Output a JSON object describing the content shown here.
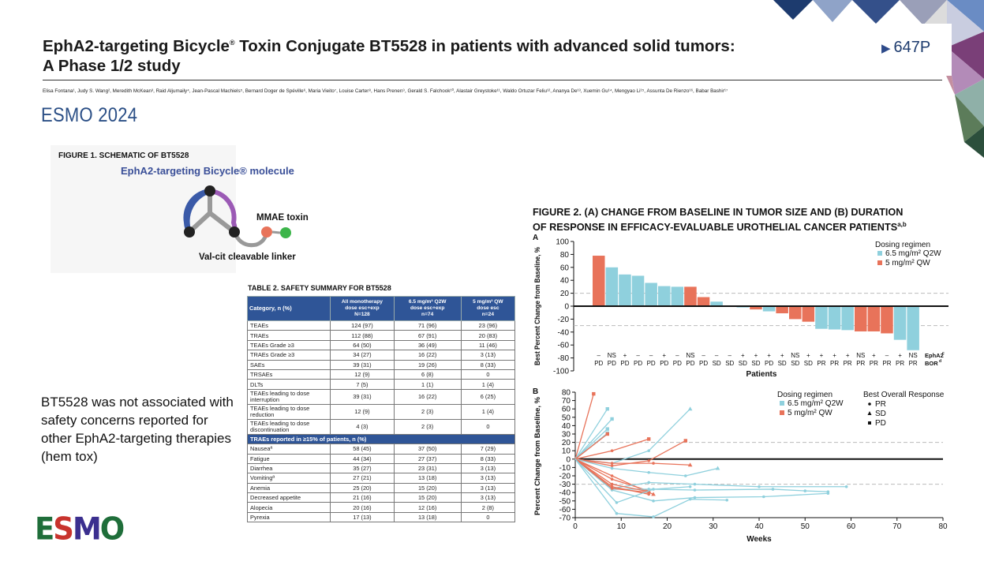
{
  "header": {
    "title_line1": "EphA2-targeting Bicycle",
    "title_reg": "®",
    "title_line1_rest": " Toxin Conjugate BT5528 in patients with advanced solid tumors:",
    "title_line2": "A Phase 1/2 study",
    "poster_number": "647P",
    "authors": "Elisa Fontana¹, Judy S. Wang², Meredith McKean³, Raid Aljumaily⁴, Jean-Pascal Machiels⁵, Bernard Doger de Spéville⁶, Maria Vieito⁷, Louise Carter⁸, Hans Prenen⁹, Gerald S. Falchook¹⁰, Alastair Greystoke¹¹, Waldo Ortuzar Feliu¹², Ananya De¹³, Xuemin Gu¹⁴, Mengyao Li¹⁵, Assunta De Rienzo¹⁶, Babar Bashir¹⁷",
    "conference": "ESMO 2024"
  },
  "figure1": {
    "title": "FIGURE 1. SCHEMATIC OF BT5528",
    "molecule_label": "EphA2-targeting Bicycle® molecule",
    "toxin_label": "MMAE toxin",
    "linker_label": "Val-cit cleavable linker",
    "colors": {
      "loop_blue": "#3a5aa8",
      "loop_purple": "#9b5ab5",
      "linker": "#999999",
      "toxin_red": "#e8735a",
      "toxin_green": "#3cb54a"
    }
  },
  "summary_text": "BT5528 was not associated with safety concerns reported for other EphA2-targeting therapies (hem tox)",
  "logo": {
    "letters": [
      "E",
      "S",
      "M",
      "O"
    ],
    "colors": [
      "#1f6e3a",
      "#c8332d",
      "#3b2f8f",
      "#1f6e3a"
    ]
  },
  "table2": {
    "title": "TABLE 2. SAFETY SUMMARY FOR BT5528",
    "headers": [
      {
        "l1": "Category, n (%)",
        "l2": "",
        "l3": ""
      },
      {
        "l1": "All monotherapy",
        "l2": "dose esc+exp",
        "l3": "N=128"
      },
      {
        "l1": "6.5 mg/m² Q2W",
        "l2": "dose esc+exp",
        "l3": "n=74"
      },
      {
        "l1": "5 mg/m² QW",
        "l2": "dose esc",
        "l3": "n=24"
      }
    ],
    "rows": [
      [
        "TEAEs",
        "124 (97)",
        "71 (96)",
        "23 (96)"
      ],
      [
        "TRAEs",
        "112 (88)",
        "67 (91)",
        "20 (83)"
      ],
      [
        "TEAEs Grade ≥3",
        "64 (50)",
        "36 (49)",
        "11 (46)"
      ],
      [
        "TRAEs Grade ≥3",
        "34 (27)",
        "16 (22)",
        "3 (13)"
      ],
      [
        "SAEs",
        "39 (31)",
        "19 (26)",
        "8 (33)"
      ],
      [
        "TRSAEs",
        "12 (9)",
        "6 (8)",
        "0"
      ],
      [
        "DLTs",
        "7 (5)",
        "1 (1)",
        "1 (4)"
      ]
    ],
    "tall_rows": [
      [
        "TEAEs leading to dose interruption",
        "39 (31)",
        "16 (22)",
        "6 (25)"
      ],
      [
        "TEAEs leading to dose reduction",
        "12 (9)",
        "2 (3)",
        "1 (4)"
      ],
      [
        "TEAEs leading to dose discontinuation",
        "4 (3)",
        "2 (3)",
        "0"
      ]
    ],
    "section": "TRAEs reported in ≥15% of patients, n (%)",
    "trae_rows": [
      [
        "Nauseaª",
        "58 (45)",
        "37 (50)",
        "7 (29)"
      ],
      [
        "Fatigue",
        "44 (34)",
        "27 (37)",
        "8 (33)"
      ],
      [
        "Diarrhea",
        "35 (27)",
        "23 (31)",
        "3 (13)"
      ],
      [
        "Vomitingª",
        "27 (21)",
        "13 (18)",
        "3 (13)"
      ],
      [
        "Anemia",
        "25 (20)",
        "15 (20)",
        "3 (13)"
      ],
      [
        "Decreased appetite",
        "21 (16)",
        "15 (20)",
        "3 (13)"
      ],
      [
        "Alopecia",
        "20 (16)",
        "12 (16)",
        "2 (8)"
      ],
      [
        "Pyrexia",
        "17 (13)",
        "13 (18)",
        "0"
      ]
    ]
  },
  "figure2": {
    "title_line1": "FIGURE 2. (A) CHANGE FROM BASELINE IN TUMOR SIZE AND (B) DURATION",
    "title_line2": "OF RESPONSE IN EFFICACY-EVALUABLE UROTHELIAL CANCER PATIENTS",
    "title_sup": "a,b"
  },
  "chart_data": [
    {
      "type": "bar",
      "panel": "A",
      "ylabel": "Best Percent Change from Baseline, %",
      "xlabel": "Patients",
      "ylim": [
        -100,
        100
      ],
      "yticks": [
        100,
        80,
        60,
        40,
        20,
        0,
        -20,
        -40,
        -60,
        -80,
        -100
      ],
      "reference_lines": [
        20,
        -30
      ],
      "legend_title": "Dosing regimen",
      "series_names": [
        "6.5 mg/m² Q2W",
        "5 mg/m² QW"
      ],
      "colors": {
        "6.5 mg/m² Q2W": "#8fd0dd",
        "5 mg/m² QW": "#e8735a"
      },
      "bars": [
        {
          "value": 78,
          "regimen": "5 mg/m² QW",
          "epha2": "–",
          "bor": "PD"
        },
        {
          "value": 60,
          "regimen": "6.5 mg/m² Q2W",
          "epha2": "NS",
          "bor": "PD"
        },
        {
          "value": 49,
          "regimen": "6.5 mg/m² Q2W",
          "epha2": "+",
          "bor": "PD"
        },
        {
          "value": 47,
          "regimen": "6.5 mg/m² Q2W",
          "epha2": "–",
          "bor": "PD"
        },
        {
          "value": 36,
          "regimen": "6.5 mg/m² Q2W",
          "epha2": "–",
          "bor": "PD"
        },
        {
          "value": 31,
          "regimen": "6.5 mg/m² Q2W",
          "epha2": "+",
          "bor": "PD"
        },
        {
          "value": 30,
          "regimen": "6.5 mg/m² Q2W",
          "epha2": "–",
          "bor": "PD"
        },
        {
          "value": 30,
          "regimen": "5 mg/m² QW",
          "epha2": "NS",
          "bor": "PD"
        },
        {
          "value": 14,
          "regimen": "5 mg/m² QW",
          "epha2": "–",
          "bor": "PD"
        },
        {
          "value": 7,
          "regimen": "6.5 mg/m² Q2W",
          "epha2": "–",
          "bor": "SD"
        },
        {
          "value": -1,
          "regimen": "6.5 mg/m² Q2W",
          "epha2": "–",
          "bor": "SD"
        },
        {
          "value": -2,
          "regimen": "6.5 mg/m² Q2W",
          "epha2": "+",
          "bor": "SD"
        },
        {
          "value": -5,
          "regimen": "5 mg/m² QW",
          "epha2": "+",
          "bor": "SD"
        },
        {
          "value": -8,
          "regimen": "6.5 mg/m² Q2W",
          "epha2": "+",
          "bor": "PD"
        },
        {
          "value": -11,
          "regimen": "5 mg/m² QW",
          "epha2": "+",
          "bor": "SD"
        },
        {
          "value": -20,
          "regimen": "5 mg/m² QW",
          "epha2": "NS",
          "bor": "SD"
        },
        {
          "value": -24,
          "regimen": "5 mg/m² QW",
          "epha2": "+",
          "bor": "SD"
        },
        {
          "value": -35,
          "regimen": "6.5 mg/m² Q2W",
          "epha2": "+",
          "bor": "PR"
        },
        {
          "value": -36,
          "regimen": "6.5 mg/m² Q2W",
          "epha2": "+",
          "bor": "PR"
        },
        {
          "value": -37,
          "regimen": "6.5 mg/m² Q2W",
          "epha2": "+",
          "bor": "PR"
        },
        {
          "value": -39,
          "regimen": "5 mg/m² QW",
          "epha2": "NS",
          "bor": "PR"
        },
        {
          "value": -39,
          "regimen": "5 mg/m² QW",
          "epha2": "+",
          "bor": "PR"
        },
        {
          "value": -42,
          "regimen": "5 mg/m² QW",
          "epha2": "–",
          "bor": "PR"
        },
        {
          "value": -52,
          "regimen": "6.5 mg/m² Q2W",
          "epha2": "+",
          "bor": "PR"
        },
        {
          "value": -68,
          "regimen": "6.5 mg/m² Q2W",
          "epha2": "NS",
          "bor": "PR"
        }
      ],
      "row_label_epha2": "EphA2",
      "row_label_epha2_sup": "c",
      "row_label_bor": "BOR",
      "row_label_bor_sup": "d"
    },
    {
      "type": "line",
      "panel": "B",
      "ylabel": "Percent Change from Baseline, %",
      "xlabel": "Weeks",
      "xlim": [
        0,
        80
      ],
      "ylim": [
        -70,
        80
      ],
      "xticks": [
        0,
        10,
        20,
        30,
        40,
        50,
        60,
        70,
        80
      ],
      "yticks": [
        80,
        70,
        60,
        50,
        40,
        30,
        20,
        10,
        0,
        -10,
        -20,
        -30,
        -40,
        -50,
        -60,
        -70
      ],
      "reference_lines": [
        20,
        -30
      ],
      "legend_title": "Dosing regimen",
      "legend2_title": "Best Overall Response",
      "response_labels": [
        "PR",
        "SD",
        "PD"
      ],
      "series_names": [
        "6.5 mg/m² Q2W",
        "5 mg/m² QW"
      ],
      "colors": {
        "6.5 mg/m² Q2W": "#8fd0dd",
        "5 mg/m² QW": "#e8735a"
      },
      "lines": [
        {
          "regimen": "5 mg/m² QW",
          "bor": "PD",
          "points": [
            [
              0,
              0
            ],
            [
              4,
              78
            ]
          ]
        },
        {
          "regimen": "6.5 mg/m² Q2W",
          "bor": "PD",
          "points": [
            [
              0,
              0
            ],
            [
              7,
              60
            ]
          ]
        },
        {
          "regimen": "6.5 mg/m² Q2W",
          "bor": "PD",
          "points": [
            [
              0,
              0
            ],
            [
              8,
              48
            ]
          ]
        },
        {
          "regimen": "6.5 mg/m² Q2W",
          "bor": "PD",
          "points": [
            [
              0,
              0
            ],
            [
              7,
              36
            ]
          ]
        },
        {
          "regimen": "6.5 mg/m² Q2W",
          "bor": "PD",
          "points": [
            [
              0,
              0
            ],
            [
              7,
              31
            ]
          ]
        },
        {
          "regimen": "5 mg/m² QW",
          "bor": "PD",
          "points": [
            [
              0,
              0
            ],
            [
              7,
              30
            ]
          ]
        },
        {
          "regimen": "6.5 mg/m² Q2W",
          "bor": "SD",
          "points": [
            [
              0,
              0
            ],
            [
              8,
              -5
            ],
            [
              16,
              10
            ],
            [
              25,
              60
            ]
          ]
        },
        {
          "regimen": "5 mg/m² QW",
          "bor": "PD",
          "points": [
            [
              0,
              0
            ],
            [
              8,
              10
            ],
            [
              16,
              24
            ]
          ]
        },
        {
          "regimen": "5 mg/m² QW",
          "bor": "PD",
          "points": [
            [
              0,
              0
            ],
            [
              8,
              -8
            ],
            [
              16,
              -2
            ],
            [
              24,
              22
            ]
          ]
        },
        {
          "regimen": "5 mg/m² QW",
          "bor": "SD",
          "points": [
            [
              0,
              0
            ],
            [
              8,
              -5
            ],
            [
              17,
              -5
            ],
            [
              25,
              -7
            ]
          ]
        },
        {
          "regimen": "6.5 mg/m² Q2W",
          "bor": "SD",
          "points": [
            [
              0,
              0
            ],
            [
              8,
              -11
            ],
            [
              16,
              -16
            ],
            [
              24,
              -20
            ],
            [
              31,
              -11
            ]
          ]
        },
        {
          "regimen": "5 mg/m² QW",
          "bor": "SD",
          "points": [
            [
              0,
              0
            ],
            [
              8,
              -20
            ],
            [
              16,
              -40
            ],
            [
              17,
              -42
            ]
          ]
        },
        {
          "regimen": "5 mg/m² QW",
          "bor": "SD",
          "points": [
            [
              0,
              0
            ],
            [
              8,
              -24
            ],
            [
              16,
              -38
            ]
          ]
        },
        {
          "regimen": "6.5 mg/m² Q2W",
          "bor": "PR",
          "points": [
            [
              0,
              0
            ],
            [
              8,
              -35
            ],
            [
              16,
              -28
            ],
            [
              26,
              -30
            ],
            [
              40,
              -33
            ],
            [
              59,
              -33
            ]
          ]
        },
        {
          "regimen": "6.5 mg/m² Q2W",
          "bor": "PR",
          "points": [
            [
              0,
              0
            ],
            [
              8,
              -36
            ],
            [
              16,
              -36
            ],
            [
              26,
              -37
            ],
            [
              43,
              -36
            ],
            [
              50,
              -38
            ],
            [
              55,
              -39
            ]
          ]
        },
        {
          "regimen": "6.5 mg/m² Q2W",
          "bor": "PR",
          "points": [
            [
              0,
              0
            ],
            [
              8,
              -37
            ],
            [
              17,
              -50
            ],
            [
              26,
              -46
            ],
            [
              41,
              -45
            ],
            [
              55,
              -41
            ]
          ]
        },
        {
          "regimen": "5 mg/m² QW",
          "bor": "PR",
          "points": [
            [
              0,
              0
            ],
            [
              8,
              -30
            ],
            [
              16,
              -39
            ]
          ]
        },
        {
          "regimen": "5 mg/m² QW",
          "bor": "PR",
          "points": [
            [
              0,
              0
            ],
            [
              8,
              -33
            ],
            [
              16,
              -42
            ]
          ]
        },
        {
          "regimen": "5 mg/m² QW",
          "bor": "PR",
          "points": [
            [
              0,
              0
            ],
            [
              8,
              -35
            ],
            [
              16,
              -40
            ]
          ]
        },
        {
          "regimen": "6.5 mg/m² Q2W",
          "bor": "PR",
          "points": [
            [
              0,
              0
            ],
            [
              9,
              -52
            ],
            [
              17,
              -36
            ],
            [
              25,
              -33
            ]
          ]
        },
        {
          "regimen": "6.5 mg/m² Q2W",
          "bor": "PR",
          "points": [
            [
              0,
              0
            ],
            [
              9,
              -65
            ],
            [
              17,
              -69
            ],
            [
              25,
              -48
            ],
            [
              33,
              -49
            ]
          ]
        }
      ]
    }
  ]
}
